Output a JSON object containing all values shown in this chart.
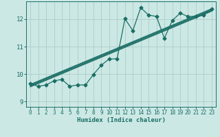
{
  "xlabel": "Humidex (Indice chaleur)",
  "xlim": [
    -0.5,
    23.5
  ],
  "ylim": [
    8.8,
    12.65
  ],
  "yticks": [
    9,
    10,
    11,
    12
  ],
  "xticks": [
    0,
    1,
    2,
    3,
    4,
    5,
    6,
    7,
    8,
    9,
    10,
    11,
    12,
    13,
    14,
    15,
    16,
    17,
    18,
    19,
    20,
    21,
    22,
    23
  ],
  "bg_color": "#cce8e5",
  "grid_color": "#b0d0cc",
  "line_color": "#1a6e65",
  "marker": "D",
  "markersize": 2.5,
  "linewidth": 0.9,
  "series": [
    [
      0,
      9.65
    ],
    [
      1,
      9.55
    ],
    [
      2,
      9.6
    ],
    [
      3,
      9.75
    ],
    [
      4,
      9.8
    ],
    [
      5,
      9.55
    ],
    [
      6,
      9.6
    ],
    [
      7,
      9.6
    ],
    [
      8,
      9.98
    ],
    [
      9,
      10.32
    ],
    [
      10,
      10.55
    ],
    [
      11,
      10.55
    ],
    [
      12,
      12.02
    ],
    [
      13,
      11.58
    ],
    [
      14,
      12.42
    ],
    [
      15,
      12.15
    ],
    [
      16,
      12.1
    ],
    [
      17,
      11.3
    ],
    [
      18,
      11.95
    ],
    [
      19,
      12.22
    ],
    [
      20,
      12.1
    ],
    [
      21,
      12.1
    ],
    [
      22,
      12.15
    ],
    [
      23,
      12.38
    ]
  ],
  "trend_lines": [
    [
      [
        0,
        9.62
      ],
      [
        23,
        12.38
      ]
    ],
    [
      [
        0,
        9.59
      ],
      [
        23,
        12.35
      ]
    ],
    [
      [
        0,
        9.56
      ],
      [
        23,
        12.32
      ]
    ],
    [
      [
        0,
        9.53
      ],
      [
        23,
        12.29
      ]
    ]
  ]
}
